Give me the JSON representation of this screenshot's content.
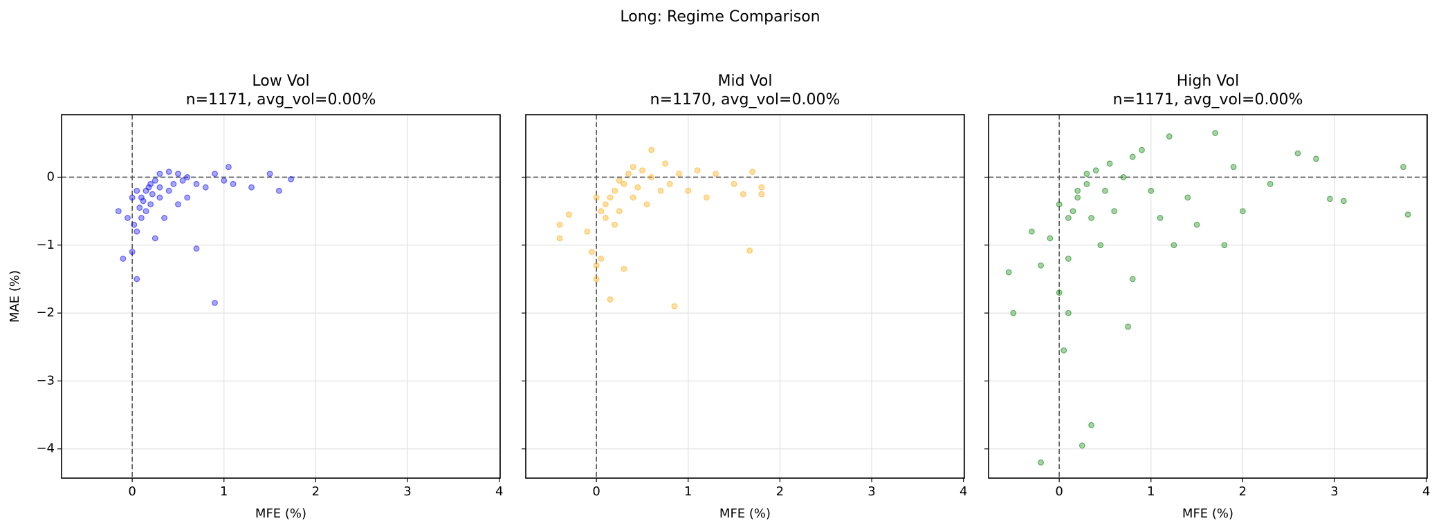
{
  "title": "Long: Regime Comparison",
  "chart_data": [
    {
      "type": "scatter",
      "title": "Low Vol",
      "subtitle": "n=1171, avg_vol=0.00%",
      "xlabel": "MFE (%)",
      "ylabel": "MAE (%)",
      "color": "#0000ff",
      "alpha": 0.35,
      "grid": true,
      "hline": 0,
      "vline": 0,
      "xlim": [
        -0.77,
        4.01
      ],
      "ylim": [
        -4.43,
        0.92
      ],
      "xticks": [
        0,
        1,
        2,
        3,
        4
      ],
      "yticks": [
        {
          "value": -4,
          "label": "−4"
        },
        {
          "value": -3,
          "label": "−3"
        },
        {
          "value": -2,
          "label": "−2"
        },
        {
          "value": -1,
          "label": "−1"
        },
        0
      ],
      "x": [
        -0.15,
        -0.1,
        0,
        0.05,
        0.05,
        0.1,
        0.1,
        0.15,
        0.2,
        0.2,
        0.25,
        0.3,
        0.3,
        0.35,
        0.4,
        0.4,
        0.45,
        0.5,
        0.5,
        0.55,
        0.6,
        0.6,
        0.7,
        0.7,
        0.8,
        0.9,
        0.9,
        1.0,
        1.05,
        1.1,
        1.3,
        1.5,
        1.6,
        1.73,
        0,
        0.05,
        0.15,
        0.25,
        0.02,
        0.3,
        0.12,
        0.22,
        -0.05,
        0.08,
        0.18
      ],
      "y": [
        -0.5,
        -1.2,
        -1.1,
        -1.5,
        -0.8,
        -0.6,
        -0.3,
        -0.2,
        -0.4,
        -0.1,
        -0.05,
        0.05,
        -0.3,
        -0.6,
        0.08,
        -0.2,
        -0.1,
        0.05,
        -0.4,
        -0.05,
        0,
        -0.3,
        -0.1,
        -1.05,
        -0.15,
        0.05,
        -1.85,
        -0.05,
        0.15,
        -0.1,
        -0.15,
        0.05,
        -0.2,
        -0.03,
        -0.3,
        -0.2,
        -0.5,
        -0.9,
        -0.7,
        -0.15,
        -0.35,
        -0.25,
        -0.6,
        -0.45,
        -0.15
      ]
    },
    {
      "type": "scatter",
      "title": "Mid Vol",
      "subtitle": "n=1170, avg_vol=0.00%",
      "xlabel": "MFE (%)",
      "color": "#ffa500",
      "alpha": 0.35,
      "grid": true,
      "hline": 0,
      "vline": 0,
      "ytick_labels": false,
      "xlim": [
        -0.77,
        4.01
      ],
      "ylim": [
        -4.43,
        0.92
      ],
      "xticks": [
        0,
        1,
        2,
        3,
        4
      ],
      "yticks": [
        -4,
        -3,
        -2,
        -1,
        0
      ],
      "x": [
        -0.4,
        -0.4,
        -0.3,
        -0.1,
        -0.05,
        0,
        0,
        0.05,
        0.1,
        0.1,
        0.15,
        0.2,
        0.25,
        0.3,
        0.3,
        0.35,
        0.4,
        0.45,
        0.5,
        0.55,
        0.6,
        0.6,
        0.7,
        0.75,
        0.8,
        0.85,
        0.9,
        1.0,
        1.1,
        1.2,
        1.3,
        1.5,
        1.6,
        1.67,
        1.7,
        1.8,
        1.8,
        0.15,
        0.05,
        0.2,
        0,
        0.25,
        0.4
      ],
      "y": [
        -0.9,
        -0.7,
        -0.55,
        -0.8,
        -1.1,
        -1.5,
        -1.3,
        -1.2,
        -0.6,
        -0.4,
        -0.3,
        -0.2,
        -0.5,
        -0.1,
        -1.35,
        0.05,
        -0.3,
        -0.15,
        0.1,
        -0.4,
        0.4,
        0,
        -0.2,
        0.2,
        -0.1,
        -1.9,
        0.05,
        -0.2,
        0.1,
        -0.3,
        0.05,
        -0.1,
        -0.25,
        -1.08,
        0.08,
        -0.15,
        -0.25,
        -1.8,
        -0.5,
        -0.7,
        -0.3,
        -0.05,
        0.15
      ]
    },
    {
      "type": "scatter",
      "title": "High Vol",
      "subtitle": "n=1171, avg_vol=0.00%",
      "xlabel": "MFE (%)",
      "color": "#008000",
      "alpha": 0.35,
      "grid": true,
      "hline": 0,
      "vline": 0,
      "ytick_labels": false,
      "xlim": [
        -0.77,
        4.01
      ],
      "ylim": [
        -4.43,
        0.92
      ],
      "xticks": [
        0,
        1,
        2,
        3,
        4
      ],
      "yticks": [
        -4,
        -3,
        -2,
        -1,
        0
      ],
      "x": [
        -0.55,
        -0.5,
        -0.3,
        -0.2,
        -0.2,
        -0.1,
        0,
        0.05,
        0.1,
        0.1,
        0.15,
        0.2,
        0.25,
        0.3,
        0.35,
        0.35,
        0.4,
        0.45,
        0.5,
        0.55,
        0.6,
        0.7,
        0.75,
        0.8,
        0.8,
        0.9,
        1.0,
        1.1,
        1.2,
        1.25,
        1.4,
        1.5,
        1.7,
        1.8,
        1.9,
        2.0,
        2.3,
        2.6,
        2.8,
        2.95,
        3.1,
        3.75,
        3.8,
        0.2,
        0.3,
        0.1,
        0
      ],
      "y": [
        -1.4,
        -2.0,
        -0.8,
        -4.2,
        -1.3,
        -0.9,
        -1.7,
        -2.55,
        -2.0,
        -1.2,
        -0.5,
        -0.3,
        -3.95,
        -0.1,
        -3.65,
        -0.6,
        0.1,
        -1.0,
        -0.2,
        0.2,
        -0.5,
        0,
        -2.2,
        0.3,
        -1.5,
        0.4,
        -0.2,
        -0.6,
        0.6,
        -1.0,
        -0.3,
        -0.7,
        0.65,
        -1.0,
        0.15,
        -0.5,
        -0.1,
        0.35,
        0.27,
        -0.32,
        -0.35,
        0.15,
        -0.55,
        -0.2,
        0.05,
        -0.6,
        -0.4
      ]
    }
  ]
}
